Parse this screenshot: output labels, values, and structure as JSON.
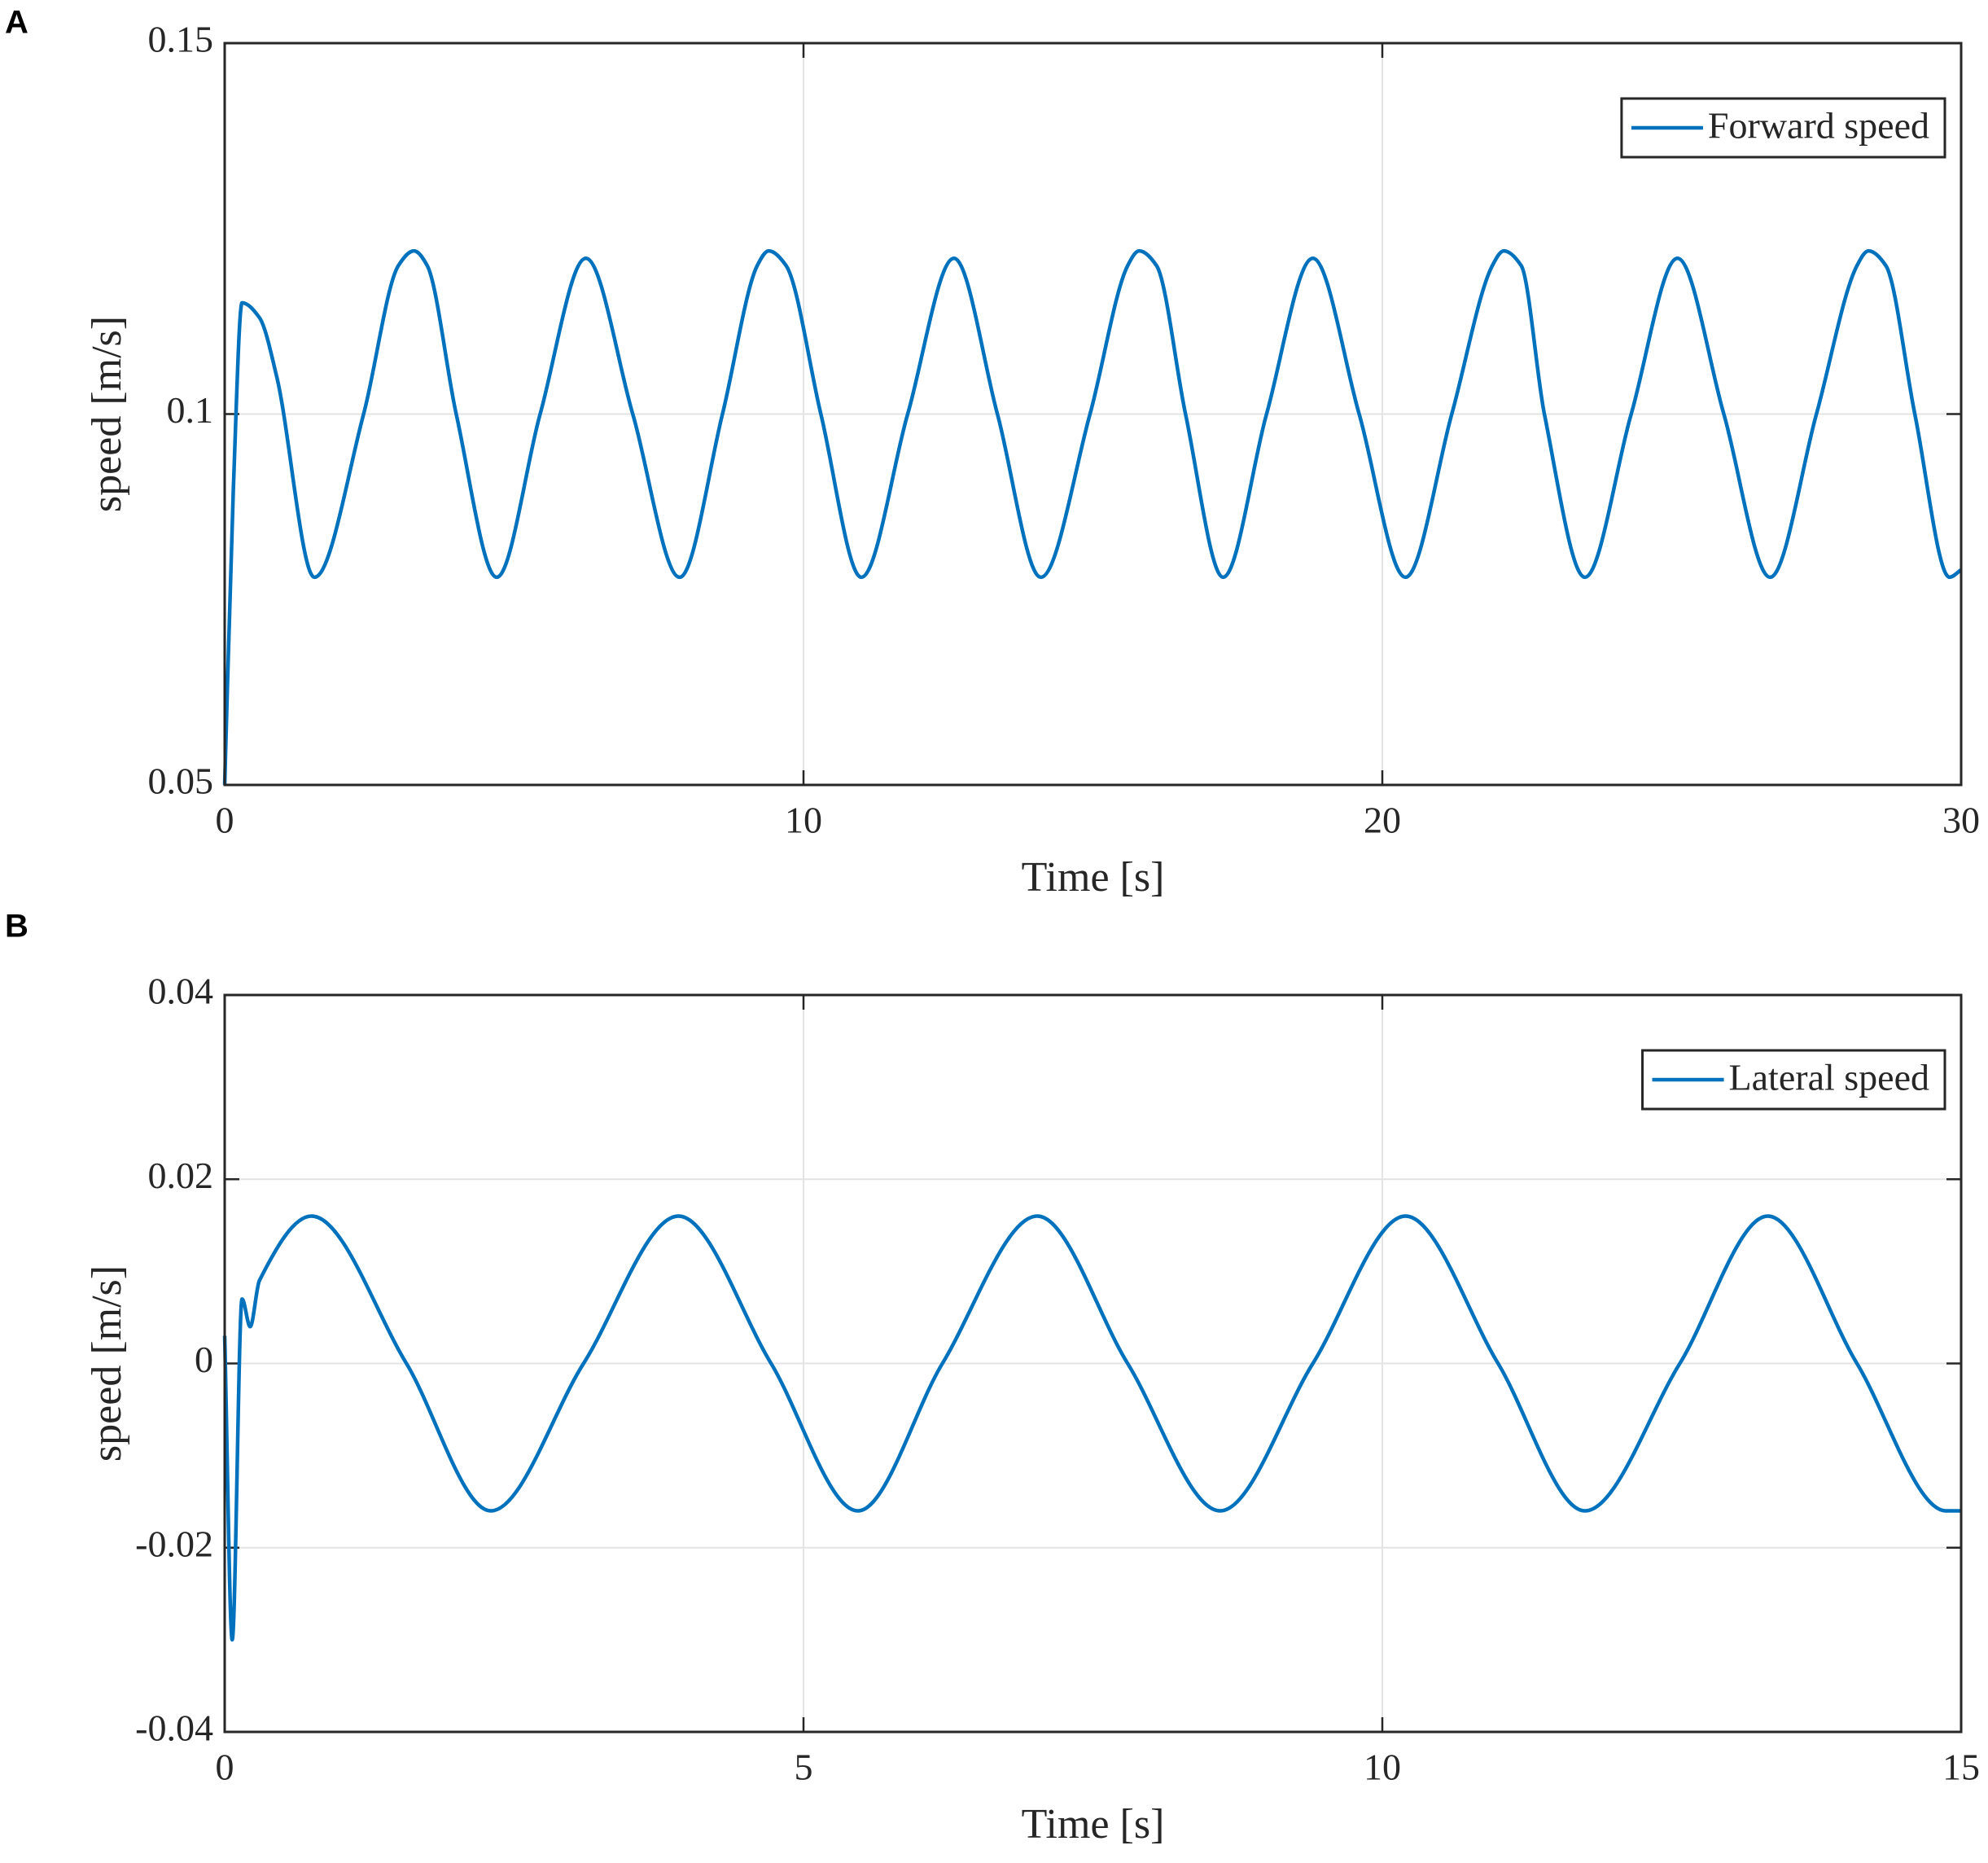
{
  "chart_data": [
    {
      "type": "line",
      "panel_label": "A",
      "xlabel": "Time [s]",
      "ylabel": "speed [m/s]",
      "x": [
        0,
        0.15,
        0.3,
        0.6,
        0.9,
        1.55,
        2.4,
        3.0,
        3.27,
        3.5,
        4.0,
        4.7,
        5.45,
        6.24,
        7.05,
        7.86,
        8.6,
        9.2,
        9.4,
        9.7,
        10.3,
        11.0,
        11.8,
        12.6,
        13.35,
        14.1,
        14.95,
        15.6,
        15.8,
        16.1,
        16.6,
        17.25,
        18.0,
        18.8,
        19.6,
        20.4,
        21.2,
        21.9,
        22.1,
        22.4,
        22.8,
        23.5,
        24.3,
        25.1,
        25.9,
        26.7,
        27.5,
        28.2,
        28.4,
        28.7,
        29.2,
        29.8,
        30
      ],
      "series": [
        {
          "name": "Forward speed",
          "color": "#0072bd",
          "values": [
            0.05,
            0.09,
            0.115,
            0.113,
            0.105,
            0.078,
            0.1,
            0.12,
            0.122,
            0.12,
            0.1,
            0.078,
            0.1,
            0.121,
            0.1,
            0.078,
            0.1,
            0.12,
            0.122,
            0.12,
            0.1,
            0.078,
            0.1,
            0.121,
            0.1,
            0.078,
            0.1,
            0.12,
            0.122,
            0.12,
            0.1,
            0.078,
            0.1,
            0.121,
            0.1,
            0.078,
            0.1,
            0.12,
            0.122,
            0.12,
            0.1,
            0.078,
            0.1,
            0.121,
            0.1,
            0.078,
            0.1,
            0.12,
            0.122,
            0.12,
            0.1,
            0.078,
            0.079
          ]
        }
      ],
      "xlim": [
        0,
        30
      ],
      "ylim": [
        0.05,
        0.15
      ],
      "xticks": [
        0,
        10,
        20,
        30
      ],
      "yticks": [
        0.05,
        0.1,
        0.15
      ],
      "grid": true,
      "legend": "northeast"
    },
    {
      "type": "line",
      "panel_label": "B",
      "xlabel": "Time [s]",
      "ylabel": "speed [m/s]",
      "x": [
        0,
        0.065,
        0.15,
        0.22,
        0.3,
        0.75,
        1.57,
        2.3,
        3.1,
        3.92,
        4.72,
        5.47,
        6.2,
        7.02,
        7.8,
        8.6,
        9.4,
        10.2,
        11.0,
        11.75,
        12.57,
        13.33,
        14.1,
        14.87,
        15
      ],
      "series": [
        {
          "name": "Lateral speed",
          "color": "#0072bd",
          "values": [
            0.003,
            -0.03,
            0.007,
            0.004,
            0.009,
            0.016,
            0,
            -0.016,
            0,
            0.016,
            0,
            -0.016,
            0,
            0.016,
            0,
            -0.016,
            0,
            0.016,
            0,
            -0.016,
            0,
            0.016,
            0,
            -0.016,
            -0.016
          ]
        }
      ],
      "xlim": [
        0,
        15
      ],
      "ylim": [
        -0.04,
        0.04
      ],
      "xticks": [
        0,
        5,
        10,
        15
      ],
      "yticks": [
        -0.04,
        -0.02,
        0,
        0.02,
        0.04
      ],
      "grid": true,
      "legend": "northeast"
    }
  ]
}
